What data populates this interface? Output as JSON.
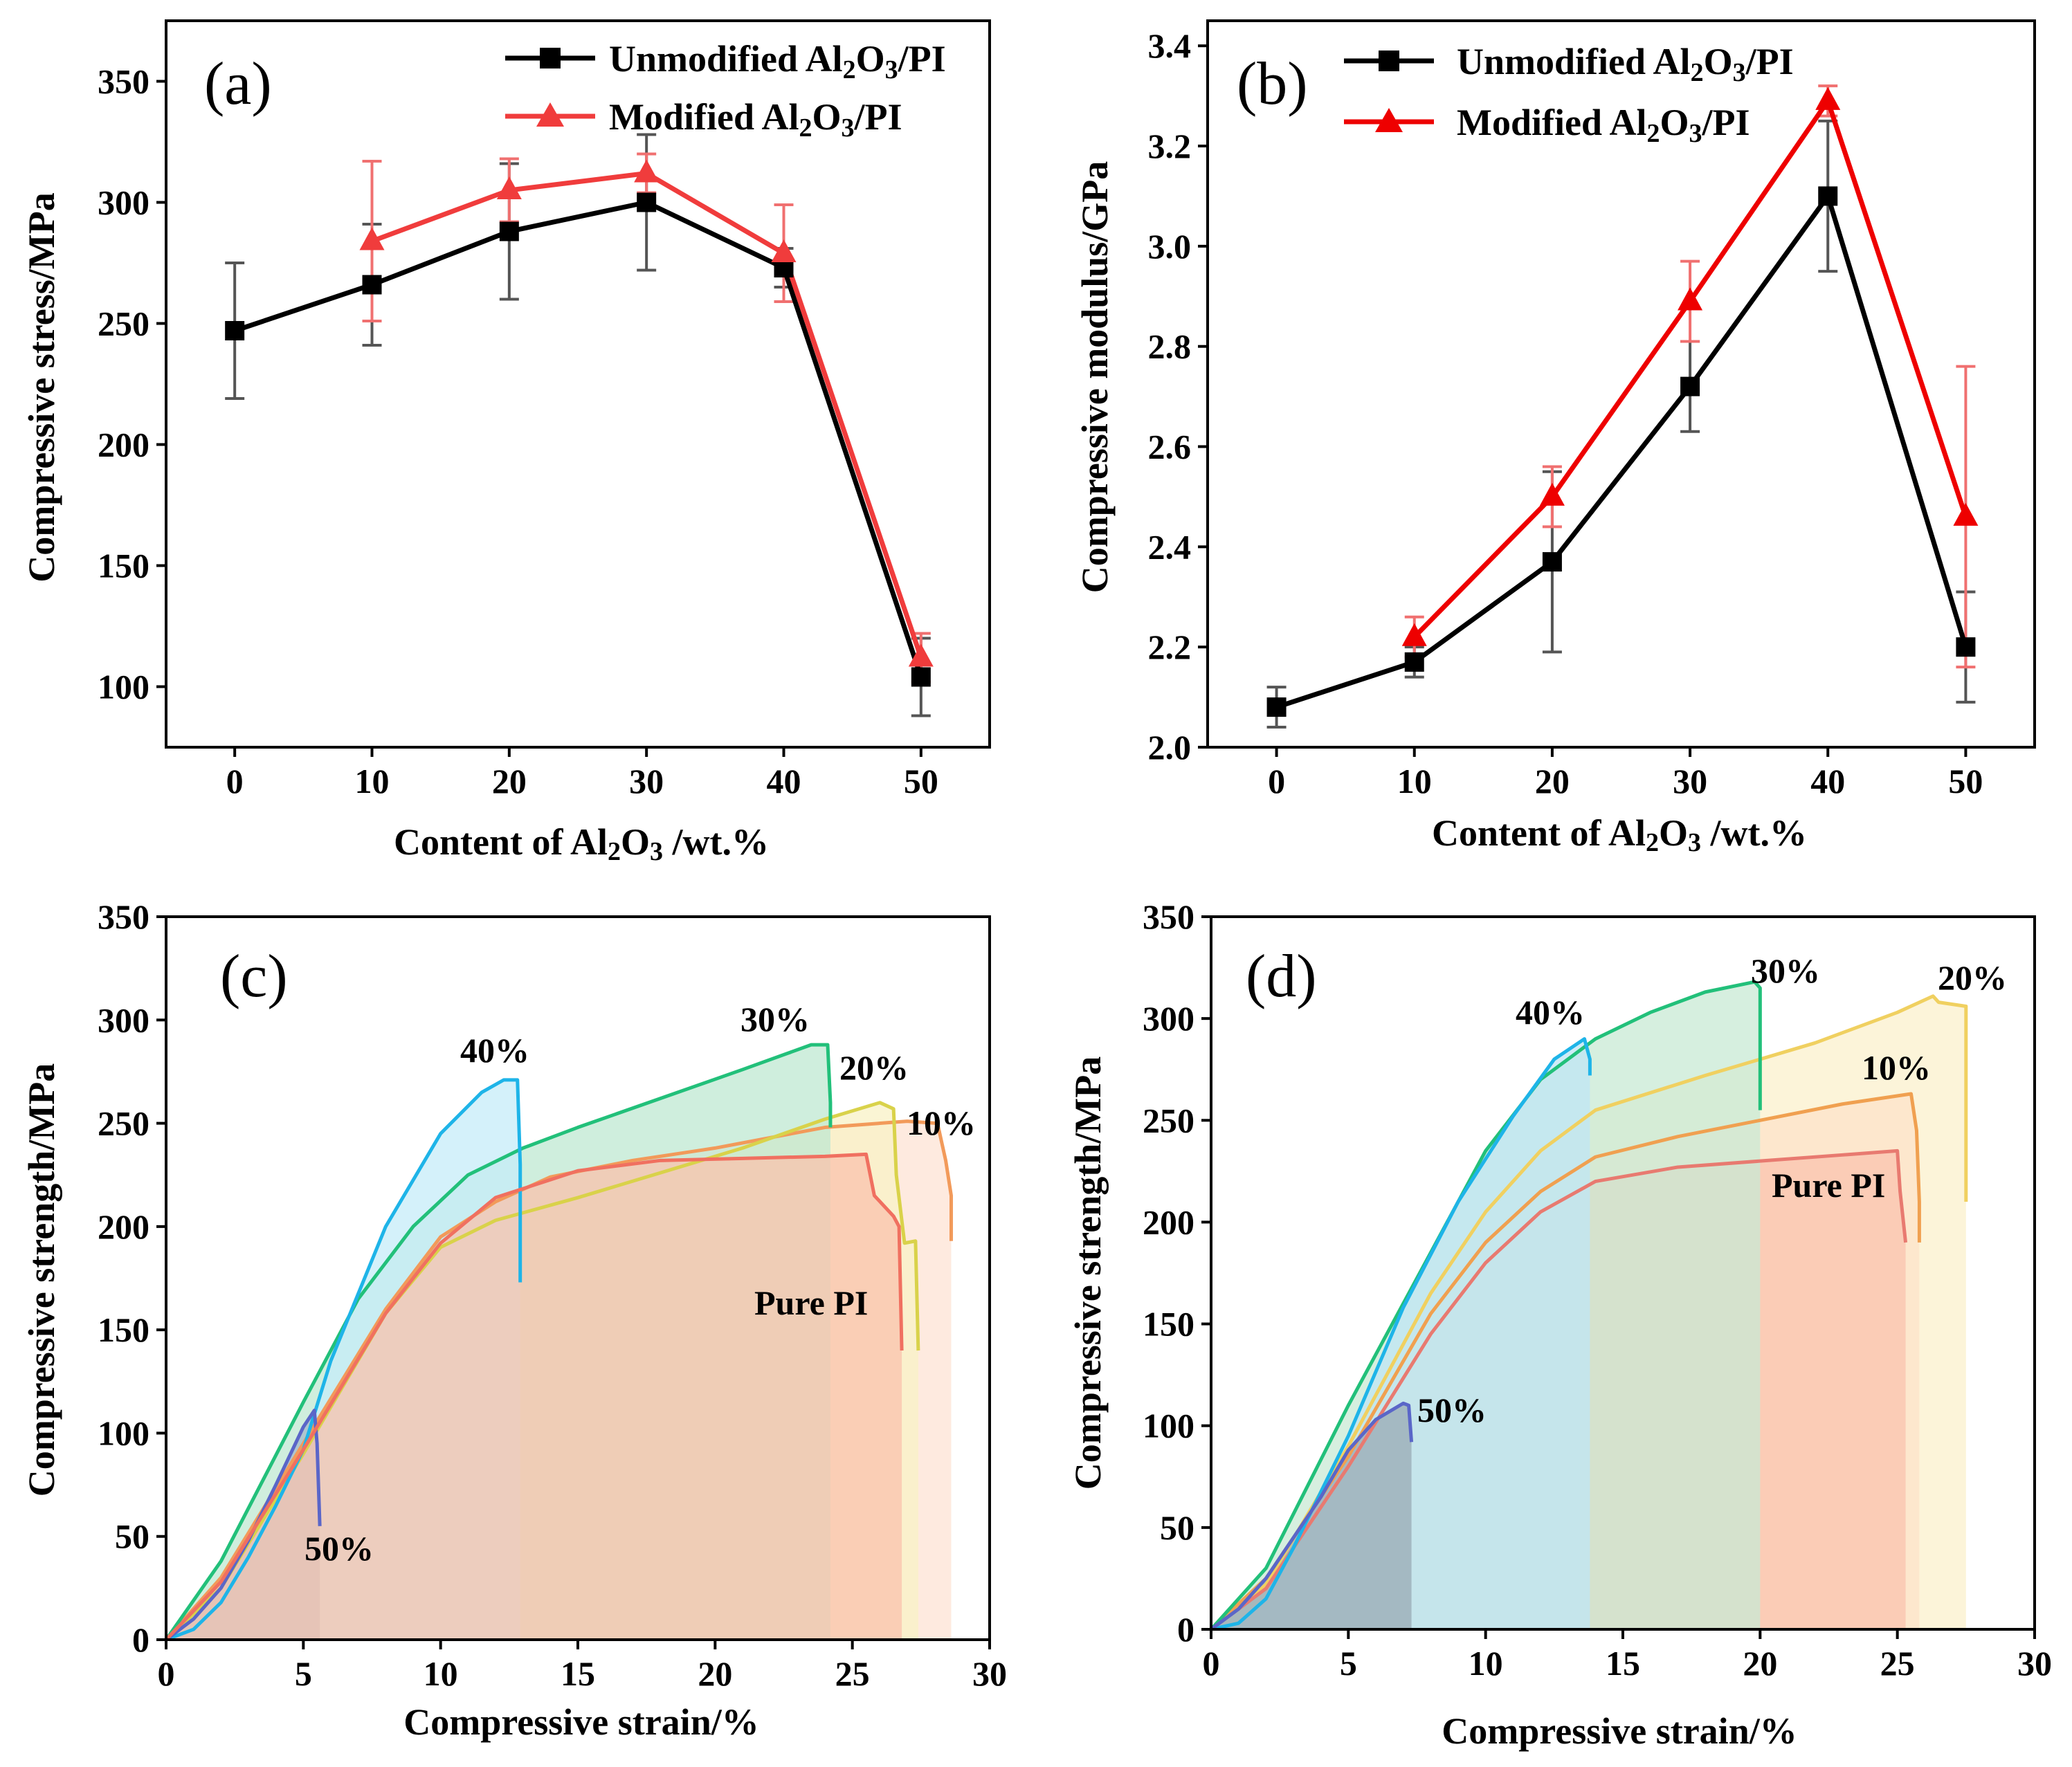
{
  "chart_data": [
    {
      "id": "a",
      "type": "line",
      "panel_label": "(a)",
      "xlabel": "Content of Al₂O₃ /wt.%",
      "ylabel": "Compressive stress/MPa",
      "xlim": [
        -5,
        55
      ],
      "ylim": [
        75,
        375
      ],
      "xticks": [
        "0",
        "10",
        "20",
        "30",
        "40",
        "50"
      ],
      "yticks": [
        "100",
        "150",
        "200",
        "250",
        "300",
        "350"
      ],
      "legend": {
        "position": "top-right",
        "entries": [
          "Unmodified Al2O3/PI",
          "Modified Al2O3/PI"
        ]
      },
      "series": [
        {
          "name": "Unmodified Al2O3/PI",
          "color": "#000000",
          "marker": "square",
          "x": [
            0,
            10,
            20,
            30,
            40,
            50
          ],
          "y": [
            247,
            266,
            288,
            300,
            273,
            104
          ],
          "err": [
            28,
            25,
            28,
            28,
            8,
            16
          ]
        },
        {
          "name": "Modified Al2O3/PI",
          "color": "#f03c3c",
          "marker": "triangle",
          "x": [
            10,
            20,
            30,
            40,
            50
          ],
          "y": [
            284,
            305,
            312,
            279,
            112
          ],
          "err": [
            33,
            13,
            8,
            20,
            10
          ]
        }
      ]
    },
    {
      "id": "b",
      "type": "line",
      "panel_label": "(b)",
      "xlabel": "Content of Al₂O₃ /wt.%",
      "ylabel": "Compressive modulus/GPa",
      "xlim": [
        -5,
        55
      ],
      "ylim": [
        2.0,
        3.45
      ],
      "xticks": [
        "0",
        "10",
        "20",
        "30",
        "40",
        "50"
      ],
      "yticks": [
        "2.0",
        "2.2",
        "2.4",
        "2.6",
        "2.8",
        "3.0",
        "3.2",
        "3.4"
      ],
      "legend": {
        "position": "top-right",
        "entries": [
          "Unmodified Al2O3/PI",
          "Modified Al2O3/PI"
        ]
      },
      "series": [
        {
          "name": "Unmodified Al2O3/PI",
          "color": "#000000",
          "marker": "square",
          "x": [
            0,
            10,
            20,
            30,
            40,
            50
          ],
          "y": [
            2.08,
            2.17,
            2.37,
            2.72,
            3.1,
            2.2
          ],
          "err": [
            0.04,
            0.03,
            0.18,
            0.09,
            0.15,
            0.11
          ]
        },
        {
          "name": "Modified Al2O3/PI",
          "color": "#ee0000",
          "marker": "triangle",
          "x": [
            10,
            20,
            30,
            40,
            50
          ],
          "y": [
            2.22,
            2.5,
            2.89,
            3.29,
            2.46
          ],
          "err": [
            0.04,
            0.06,
            0.08,
            0.03,
            0.3
          ]
        }
      ]
    },
    {
      "id": "c",
      "type": "area",
      "panel_label": "(c)",
      "xlabel": "Compressive strain/%",
      "ylabel": "Compressive strength/MPa",
      "xlim": [
        0,
        30
      ],
      "ylim": [
        0,
        350
      ],
      "xticks": [
        "0",
        "5",
        "10",
        "15",
        "20",
        "25",
        "30"
      ],
      "yticks": [
        "0",
        "50",
        "100",
        "150",
        "200",
        "250",
        "300",
        "350"
      ],
      "series": [
        {
          "name": "10%",
          "label": "10%",
          "color": "#f29a5a",
          "fill": "#fde3d4",
          "points": [
            [
              0,
              0
            ],
            [
              2,
              30
            ],
            [
              5,
              95
            ],
            [
              8,
              160
            ],
            [
              10,
              195
            ],
            [
              12,
              212
            ],
            [
              14,
              224
            ],
            [
              17,
              232
            ],
            [
              20,
              238
            ],
            [
              24,
              248
            ],
            [
              27,
              251
            ],
            [
              28.1,
              250
            ],
            [
              28.4,
              232
            ],
            [
              28.6,
              215
            ],
            [
              28.6,
              193
            ]
          ]
        },
        {
          "name": "20%",
          "label": "20%",
          "color": "#d9d24a",
          "fill": "#f8f1c6",
          "points": [
            [
              0,
              0
            ],
            [
              2,
              25
            ],
            [
              5,
              90
            ],
            [
              8,
              158
            ],
            [
              10,
              190
            ],
            [
              12,
              203
            ],
            [
              15,
              214
            ],
            [
              18,
              226
            ],
            [
              21,
              238
            ],
            [
              24,
              252
            ],
            [
              26,
              260
            ],
            [
              26.5,
              257
            ],
            [
              26.6,
              225
            ],
            [
              26.9,
              192
            ],
            [
              27.3,
              193
            ],
            [
              27.4,
              140
            ]
          ]
        },
        {
          "name": "30%",
          "label": "30%",
          "color": "#22c07a",
          "fill": "#bfe8d2",
          "points": [
            [
              0,
              0
            ],
            [
              2,
              38
            ],
            [
              5,
              115
            ],
            [
              7,
              165
            ],
            [
              9,
              200
            ],
            [
              11,
              225
            ],
            [
              13,
              238
            ],
            [
              15,
              248
            ],
            [
              18,
              262
            ],
            [
              21,
              276
            ],
            [
              23.5,
              288
            ],
            [
              24.1,
              288
            ],
            [
              24.2,
              260
            ],
            [
              24.2,
              248
            ]
          ]
        },
        {
          "name": "40%",
          "label": "40%",
          "color": "#1eb4e8",
          "fill": "#c6ecf8",
          "points": [
            [
              0,
              0
            ],
            [
              1,
              5
            ],
            [
              2,
              18
            ],
            [
              3,
              40
            ],
            [
              4,
              65
            ],
            [
              5,
              92
            ],
            [
              6,
              135
            ],
            [
              8,
              200
            ],
            [
              10,
              245
            ],
            [
              11.5,
              265
            ],
            [
              12.3,
              271
            ],
            [
              12.8,
              271
            ],
            [
              12.9,
              230
            ],
            [
              12.9,
              173
            ]
          ]
        },
        {
          "name": "50%",
          "label": "50%",
          "color": "#5a66c8",
          "fill": "#a4b8c8",
          "points": [
            [
              0,
              0
            ],
            [
              1,
              10
            ],
            [
              2,
              25
            ],
            [
              3,
              48
            ],
            [
              4,
              75
            ],
            [
              5,
              103
            ],
            [
              5.4,
              111
            ],
            [
              5.5,
              95
            ],
            [
              5.6,
              55
            ]
          ]
        },
        {
          "name": "Pure PI",
          "label": "Pure PI",
          "color": "#f07060",
          "fill": "#f9c3ad",
          "points": [
            [
              0,
              0
            ],
            [
              2,
              28
            ],
            [
              5,
              92
            ],
            [
              8,
              158
            ],
            [
              10,
              192
            ],
            [
              12,
              214
            ],
            [
              15,
              227
            ],
            [
              18,
              232
            ],
            [
              21,
              233
            ],
            [
              24,
              234
            ],
            [
              25.5,
              235
            ],
            [
              25.8,
              215
            ],
            [
              26.5,
              205
            ],
            [
              26.7,
              200
            ],
            [
              26.8,
              140
            ]
          ]
        }
      ]
    },
    {
      "id": "d",
      "type": "area",
      "panel_label": "(d)",
      "xlabel": "Compressive strain/%",
      "ylabel": "Compressive strength/MPa",
      "xlim": [
        0,
        30
      ],
      "ylim": [
        0,
        350
      ],
      "xticks": [
        "0",
        "5",
        "10",
        "15",
        "20",
        "25",
        "30"
      ],
      "yticks": [
        "0",
        "50",
        "100",
        "150",
        "200",
        "250",
        "300",
        "350"
      ],
      "series": [
        {
          "name": "20%",
          "label": "20%",
          "color": "#f0d060",
          "fill": "#fbf0cc",
          "points": [
            [
              0,
              0
            ],
            [
              2,
              22
            ],
            [
              5,
              90
            ],
            [
              8,
              165
            ],
            [
              10,
              205
            ],
            [
              12,
              235
            ],
            [
              14,
              255
            ],
            [
              18,
              272
            ],
            [
              22,
              288
            ],
            [
              25,
              303
            ],
            [
              26.3,
              311
            ],
            [
              26.5,
              308
            ],
            [
              27.5,
              306
            ],
            [
              27.5,
              210
            ]
          ]
        },
        {
          "name": "10%",
          "label": "10%",
          "color": "#f0a050",
          "fill": "#fde3c8",
          "points": [
            [
              0,
              0
            ],
            [
              2,
              25
            ],
            [
              5,
              85
            ],
            [
              8,
              155
            ],
            [
              10,
              190
            ],
            [
              12,
              215
            ],
            [
              14,
              232
            ],
            [
              17,
              242
            ],
            [
              20,
              250
            ],
            [
              23,
              258
            ],
            [
              25.5,
              263
            ],
            [
              25.7,
              245
            ],
            [
              25.8,
              210
            ],
            [
              25.8,
              190
            ]
          ]
        },
        {
          "name": "Pure PI",
          "label": "Pure PI",
          "color": "#e87a70",
          "fill": "#f9c3ad",
          "points": [
            [
              0,
              0
            ],
            [
              2,
              20
            ],
            [
              5,
              80
            ],
            [
              8,
              145
            ],
            [
              10,
              180
            ],
            [
              12,
              205
            ],
            [
              14,
              220
            ],
            [
              17,
              227
            ],
            [
              20,
              230
            ],
            [
              23,
              233
            ],
            [
              25,
              235
            ],
            [
              25.1,
              215
            ],
            [
              25.3,
              190
            ]
          ]
        },
        {
          "name": "30%",
          "label": "30%",
          "color": "#22c07a",
          "fill": "#c8ead4",
          "points": [
            [
              0,
              0
            ],
            [
              2,
              30
            ],
            [
              5,
              110
            ],
            [
              8,
              185
            ],
            [
              10,
              235
            ],
            [
              12,
              270
            ],
            [
              14,
              290
            ],
            [
              16,
              303
            ],
            [
              18,
              313
            ],
            [
              19.8,
              318
            ],
            [
              20.0,
              315
            ],
            [
              20.0,
              255
            ]
          ]
        },
        {
          "name": "40%",
          "label": "40%",
          "color": "#1eb4e8",
          "fill": "#bfe6f4",
          "points": [
            [
              0,
              0
            ],
            [
              1,
              3
            ],
            [
              2,
              15
            ],
            [
              3,
              40
            ],
            [
              5,
              95
            ],
            [
              7,
              158
            ],
            [
              9,
              210
            ],
            [
              11,
              252
            ],
            [
              12.5,
              280
            ],
            [
              13.6,
              290
            ],
            [
              13.8,
              280
            ],
            [
              13.8,
              272
            ]
          ]
        },
        {
          "name": "50%",
          "label": "50%",
          "color": "#5a66c8",
          "fill": "#98aab4",
          "points": [
            [
              0,
              0
            ],
            [
              1,
              10
            ],
            [
              2,
              25
            ],
            [
              3,
              45
            ],
            [
              4,
              65
            ],
            [
              5,
              88
            ],
            [
              6,
              103
            ],
            [
              7,
              111
            ],
            [
              7.2,
              110
            ],
            [
              7.3,
              92
            ]
          ]
        }
      ]
    }
  ]
}
